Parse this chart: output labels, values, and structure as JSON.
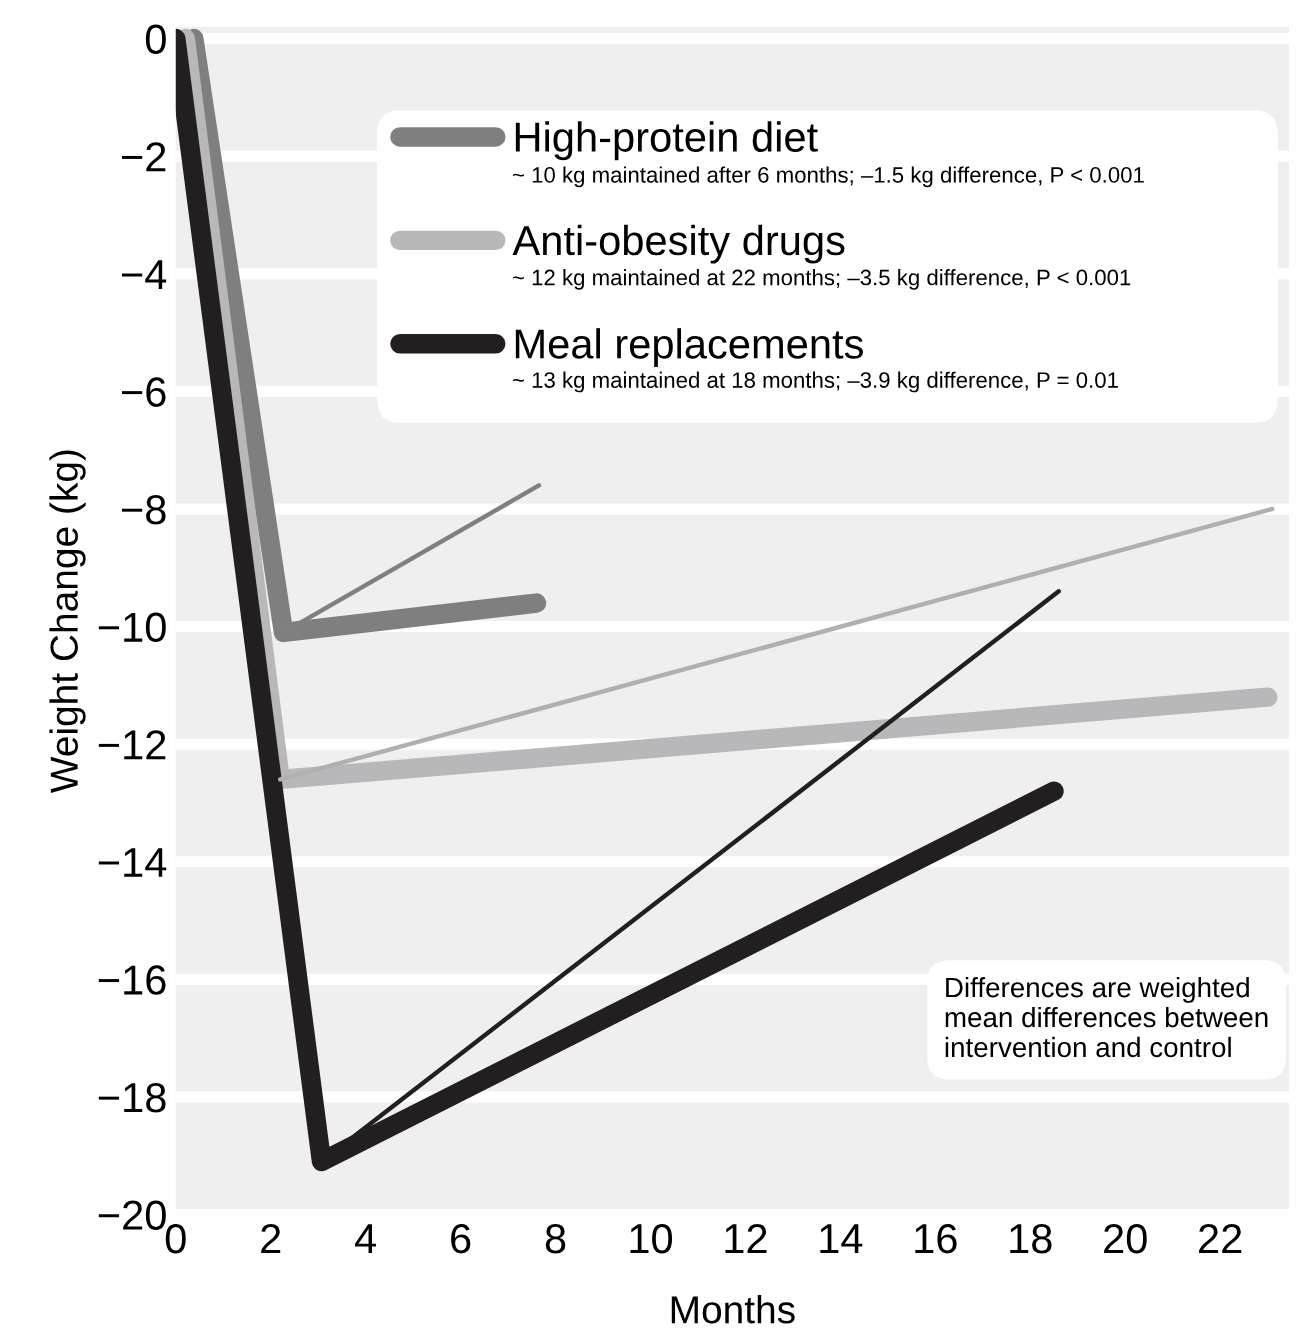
{
  "chart_data": {
    "type": "line",
    "xlabel": "Months",
    "ylabel": "Weight Change (kg)",
    "xlim": [
      0,
      23.45
    ],
    "ylim": [
      -20,
      0.2
    ],
    "xticks": [
      0,
      2,
      4,
      6,
      8,
      10,
      12,
      14,
      16,
      18,
      20,
      22
    ],
    "yticks": [
      {
        "value": 0,
        "label": "0"
      },
      {
        "value": -2,
        "label": "−2"
      },
      {
        "value": -4,
        "label": "−4"
      },
      {
        "value": -6,
        "label": "−6"
      },
      {
        "value": -8,
        "label": "−8"
      },
      {
        "value": -10,
        "label": "−10"
      },
      {
        "value": -12,
        "label": "−12"
      },
      {
        "value": -14,
        "label": "−14"
      },
      {
        "value": -16,
        "label": "−16"
      },
      {
        "value": -18,
        "label": "−18"
      },
      {
        "value": -20,
        "label": "−20"
      }
    ],
    "grid": "y",
    "legend": "top",
    "marker": "none",
    "line_style": "solid",
    "series": [
      {
        "name": "High-protein diet",
        "color": "#7f7f80",
        "x": [
          0.38,
          2.27,
          7.6
        ],
        "values": [
          0,
          -10.1,
          -9.6
        ]
      },
      {
        "name": "Anti-obesity drugs",
        "color": "#b8b8ba",
        "x": [
          0.2,
          2.2,
          23.0
        ],
        "values": [
          0,
          -12.6,
          -11.2
        ]
      },
      {
        "name": "Meal replacements",
        "color": "#231f20",
        "x": [
          0,
          3.07,
          18.5
        ],
        "values": [
          0,
          -19.1,
          -12.8
        ]
      },
      {
        "color": "#808080",
        "x": [
          2.27,
          7.65
        ],
        "values": [
          -10.1,
          -7.6
        ]
      },
      {
        "color": "#b0b0b0",
        "x": [
          2.2,
          23.1
        ],
        "values": [
          -12.6,
          -8.0
        ]
      },
      {
        "color": "#231f20",
        "x": [
          3.07,
          18.6
        ],
        "values": [
          -19.1,
          -9.4
        ]
      }
    ],
    "annotations": [
      "~ 10 kg maintained after 6 months; –1.5 kg difference, P < 0.001",
      "~ 12 kg maintained at 22 months; –3.5 kg difference, P < 0.001",
      "~ 13 kg maintained at 18 months; –3.9 kg difference, P = 0.01",
      "Differences are weighted\nmean differences between\nintervention and control"
    ]
  }
}
